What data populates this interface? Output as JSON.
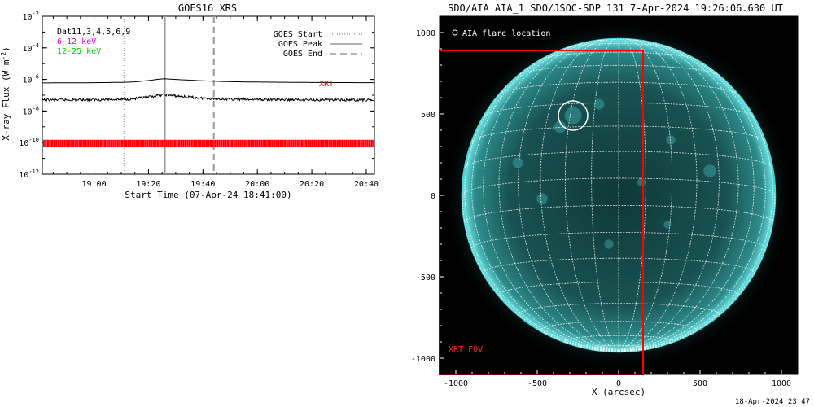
{
  "chart_data": [
    {
      "type": "line",
      "title": "GOES16 XRS",
      "xlabel": "Start Time (07-Apr-24 18:41:00)",
      "ylabel": "X-ray Flux (W m^-2)",
      "yscale": "log",
      "ylim": [
        1e-12,
        0.01
      ],
      "xlim": [
        "18:41",
        "20:43"
      ],
      "x_ticks": [
        "19:00",
        "19:20",
        "19:40",
        "20:00",
        "20:20",
        "20:40"
      ],
      "y_ticks": [
        {
          "base": "10",
          "exp": "-2"
        },
        {
          "base": "10",
          "exp": "-4"
        },
        {
          "base": "10",
          "exp": "-6"
        },
        {
          "base": "10",
          "exp": "-8"
        },
        {
          "base": "10",
          "exp": "-10"
        },
        {
          "base": "10",
          "exp": "-12"
        }
      ],
      "info_lines": [
        {
          "text": "Dat11,3,4,5,6,9",
          "color": "#000000"
        },
        {
          "text": "6-12 keV",
          "color": "#e000e0"
        },
        {
          "text": "12-25 keV",
          "color": "#00cc00"
        }
      ],
      "legend": [
        {
          "text": "GOES Start",
          "style": "dotted"
        },
        {
          "text": "GOES Peak",
          "style": "solid"
        },
        {
          "text": "GOES End",
          "style": "dashed"
        }
      ],
      "xrt_label": "XRT",
      "events": {
        "start": "19:11",
        "peak": "19:26",
        "end": "19:44"
      },
      "series": [
        {
          "name": "6-12 keV",
          "color": "#000000",
          "x": [
            "18:41",
            "19:00",
            "19:10",
            "19:15",
            "19:20",
            "19:24",
            "19:26",
            "19:30",
            "19:35",
            "19:40",
            "19:45",
            "19:50",
            "20:00",
            "20:10",
            "20:20",
            "20:30",
            "20:43"
          ],
          "y": [
            6e-07,
            6.2e-07,
            6.5e-07,
            7e-07,
            8.5e-07,
            1.05e-06,
            1.1e-06,
            1e-06,
            9e-07,
            8.2e-07,
            7.6e-07,
            7.2e-07,
            6.8e-07,
            6.6e-07,
            6.4e-07,
            6.3e-07,
            6.2e-07
          ]
        },
        {
          "name": "12-25 keV",
          "color": "#000000",
          "x": [
            "18:41",
            "19:00",
            "19:10",
            "19:15",
            "19:20",
            "19:24",
            "19:26",
            "19:30",
            "19:35",
            "19:40",
            "19:45",
            "19:50",
            "20:00",
            "20:10",
            "20:20",
            "20:30",
            "20:43"
          ],
          "y": [
            5e-08,
            5.2e-08,
            5.5e-08,
            6e-08,
            7.5e-08,
            1e-07,
            1.1e-07,
            9e-08,
            7.5e-08,
            6.5e-08,
            6e-08,
            5.6e-08,
            5.3e-08,
            5.2e-08,
            5.1e-08,
            5e-08,
            5e-08
          ]
        }
      ],
      "xrt_band": {
        "y_low": 5e-11,
        "y_high": 1.5e-10,
        "color": "#ff0000"
      }
    },
    {
      "type": "image",
      "title": "SDO/AIA AIA_1 SDO/JSOC-SDP 131  7-Apr-2024 19:26:06.630 UT",
      "xlabel": "X (arcsec)",
      "ylabel": "",
      "xlim": [
        -1100,
        1100
      ],
      "ylim": [
        -1100,
        1100
      ],
      "x_ticks": [
        "-1000",
        "-500",
        "0",
        "500",
        "1000"
      ],
      "y_ticks": [
        "1000",
        "500",
        "0",
        "-500",
        "-1000"
      ],
      "legend_flare": "AIA flare location",
      "xrt_fov_label": "XRT FOV",
      "flare_location": {
        "x": -280,
        "y": 490,
        "r": 90
      },
      "xrt_fov": {
        "x_min": -1100,
        "x_max": 150,
        "y_min": -1100,
        "y_max": 890
      },
      "solar_radius_arcsec": 960,
      "colors": {
        "disk_inner": "#123c3c",
        "disk_edge": "#4fd3d3",
        "fov": "#ff0000"
      }
    }
  ],
  "footer_timestamp": "18-Apr-2024 23:47"
}
